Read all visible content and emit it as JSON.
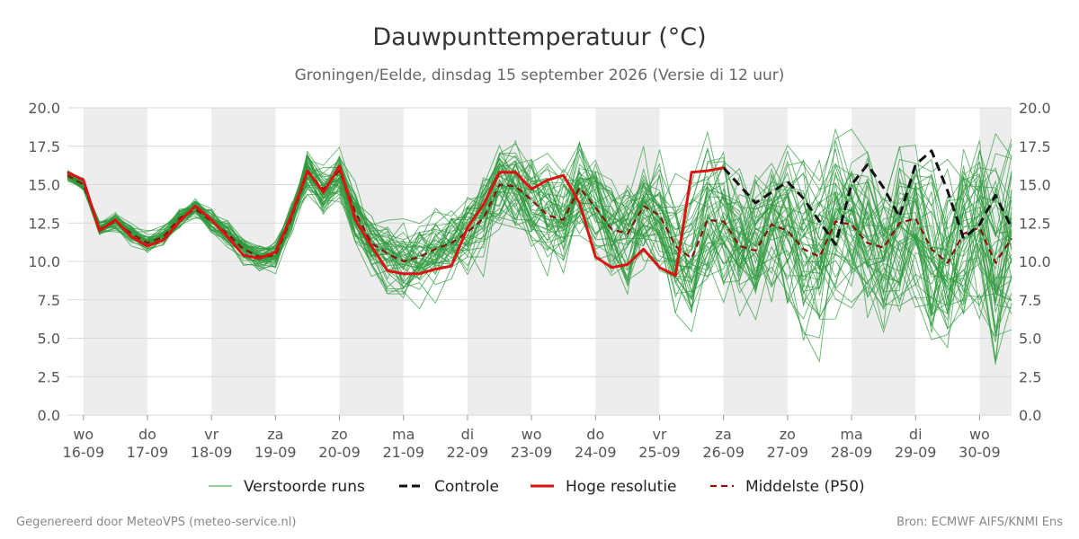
{
  "chart_data": {
    "type": "line",
    "title": "Dauwpunttemperatuur (°C)",
    "subtitle": "Groningen/Eelde, dinsdag 15 september 2026 (Versie di 12 uur)",
    "ylim": [
      0,
      20
    ],
    "yticks": [
      "0.0",
      "2.5",
      "5.0",
      "7.5",
      "10.0",
      "12.5",
      "15.0",
      "17.5",
      "20.0"
    ],
    "xlim": [
      -0.25,
      14.5
    ],
    "grid": true,
    "legend_position": "bottom",
    "x_ticks": [
      {
        "pos": 0,
        "day": "wo",
        "date": "16-09"
      },
      {
        "pos": 1,
        "day": "do",
        "date": "17-09"
      },
      {
        "pos": 2,
        "day": "vr",
        "date": "18-09"
      },
      {
        "pos": 3,
        "day": "za",
        "date": "19-09"
      },
      {
        "pos": 4,
        "day": "zo",
        "date": "20-09"
      },
      {
        "pos": 5,
        "day": "ma",
        "date": "21-09"
      },
      {
        "pos": 6,
        "day": "di",
        "date": "22-09"
      },
      {
        "pos": 7,
        "day": "wo",
        "date": "23-09"
      },
      {
        "pos": 8,
        "day": "do",
        "date": "24-09"
      },
      {
        "pos": 9,
        "day": "vr",
        "date": "25-09"
      },
      {
        "pos": 10,
        "day": "za",
        "date": "26-09"
      },
      {
        "pos": 11,
        "day": "zo",
        "date": "27-09"
      },
      {
        "pos": 12,
        "day": "ma",
        "date": "28-09"
      },
      {
        "pos": 13,
        "day": "di",
        "date": "29-09"
      },
      {
        "pos": 14,
        "day": "wo",
        "date": "30-09"
      }
    ],
    "shaded_days": [
      0,
      2,
      4,
      6,
      8,
      10,
      12,
      14
    ],
    "series": [
      {
        "name": "Hoge resolutie",
        "color": "#dd1111",
        "width": 3,
        "dash": "",
        "x": [
          -0.25,
          -0.0,
          0.25,
          0.5,
          0.75,
          1.0,
          1.25,
          1.5,
          1.75,
          2.0,
          2.25,
          2.5,
          2.75,
          3.0,
          3.25,
          3.5,
          3.75,
          4.0,
          4.25,
          4.5,
          4.75,
          5.0,
          5.25,
          5.5,
          5.75,
          6.0,
          6.25,
          6.5,
          6.75,
          7.0,
          7.25,
          7.5,
          7.75,
          8.0,
          8.25,
          8.5,
          8.75,
          9.0,
          9.25,
          9.5,
          9.75,
          10.0
        ],
        "y": [
          15.8,
          15.3,
          12.0,
          12.7,
          11.6,
          11.0,
          11.4,
          12.6,
          13.6,
          12.7,
          11.6,
          10.4,
          10.2,
          10.6,
          13.0,
          15.9,
          14.5,
          16.2,
          12.7,
          11.0,
          9.4,
          9.2,
          9.2,
          9.5,
          9.7,
          12.2,
          13.7,
          15.8,
          15.8,
          14.7,
          15.3,
          15.6,
          13.8,
          10.3,
          9.6,
          9.8,
          10.8,
          9.6,
          9.1,
          15.8,
          15.9,
          16.1
        ]
      },
      {
        "name": "Controle",
        "color": "#111111",
        "width": 3,
        "dash": "10,6",
        "x": [
          10.0,
          10.5,
          11.0,
          11.25,
          11.5,
          11.75,
          12.0,
          12.25,
          12.5,
          12.75,
          13.0,
          13.25,
          13.5,
          13.75,
          14.0,
          14.25,
          14.5
        ],
        "y": [
          16.1,
          13.8,
          15.2,
          14.1,
          12.6,
          11.1,
          15.0,
          16.3,
          14.8,
          12.9,
          16.3,
          17.2,
          14.6,
          11.5,
          12.4,
          14.3,
          12.2
        ]
      },
      {
        "name": "Middelste (P50)",
        "color": "#8b1010",
        "width": 2.2,
        "dash": "7,5",
        "x": [
          -0.25,
          -0.0,
          0.25,
          0.5,
          0.75,
          1.0,
          1.25,
          1.5,
          1.75,
          2.0,
          2.25,
          2.5,
          2.75,
          3.0,
          3.25,
          3.5,
          3.75,
          4.0,
          4.25,
          4.5,
          4.75,
          5.0,
          5.25,
          5.5,
          5.75,
          6.0,
          6.25,
          6.5,
          6.75,
          7.0,
          7.25,
          7.5,
          7.75,
          8.0,
          8.25,
          8.5,
          8.75,
          9.0,
          9.25,
          9.5,
          9.75,
          10.0,
          10.25,
          10.5,
          10.75,
          11.0,
          11.25,
          11.5,
          11.75,
          12.0,
          12.25,
          12.5,
          12.75,
          13.0,
          13.25,
          13.5,
          13.75,
          14.0,
          14.25,
          14.5
        ],
        "y": [
          15.6,
          15.0,
          12.1,
          12.6,
          11.8,
          11.2,
          11.6,
          12.8,
          13.4,
          12.6,
          11.8,
          10.8,
          10.3,
          10.4,
          12.8,
          15.8,
          14.7,
          15.9,
          13.2,
          11.2,
          10.5,
          10.0,
          10.3,
          10.8,
          11.2,
          11.9,
          12.8,
          15.0,
          14.9,
          14.0,
          13.0,
          12.7,
          14.8,
          13.5,
          12.1,
          11.8,
          13.6,
          13.0,
          11.0,
          10.2,
          12.7,
          12.6,
          11.0,
          10.7,
          12.4,
          12.0,
          10.8,
          10.3,
          12.6,
          12.4,
          11.2,
          10.9,
          12.5,
          12.8,
          10.8,
          9.9,
          11.8,
          12.2,
          9.9,
          11.5
        ]
      }
    ],
    "ensemble": {
      "name": "Verstoorde runs",
      "color": "#2e9a3e",
      "members": 50
    }
  },
  "legend": [
    {
      "label": "Verstoorde runs",
      "kind": "thin",
      "color": "#2e9a3e"
    },
    {
      "label": "Controle",
      "kind": "dash",
      "color": "#111111"
    },
    {
      "label": "Hoge resolutie",
      "kind": "solid",
      "color": "#dd1111"
    },
    {
      "label": "Middelste (P50)",
      "kind": "dash",
      "color": "#8b1010"
    }
  ],
  "footer": {
    "left": "Gegenereerd door MeteoVPS (meteo-service.nl)",
    "right": "Bron: ECMWF AIFS/KNMI Ens"
  }
}
